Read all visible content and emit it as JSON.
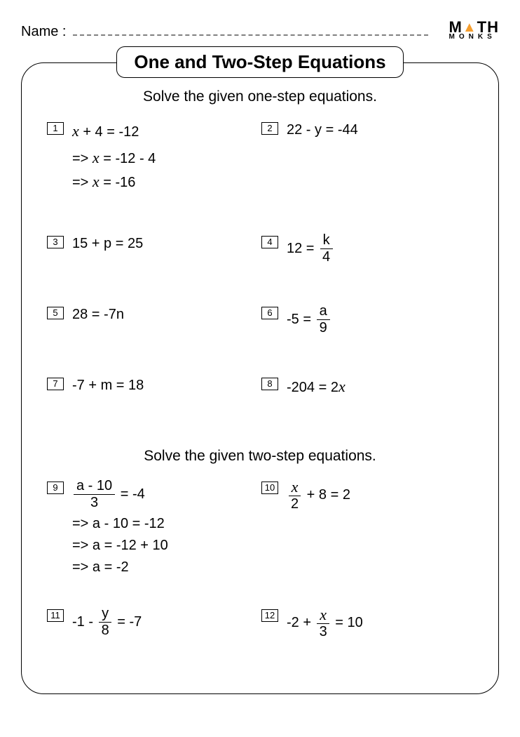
{
  "name_label": "Name :",
  "logo": {
    "l1a": "M",
    "l1b": "TH",
    "l2": "MONKS"
  },
  "title": "One and Two-Step Equations",
  "section1_head": "Solve the given one-step equations.",
  "section2_head": "Solve the given two-step equations.",
  "q1": {
    "n": "1",
    "eq": " + 4 = -12",
    "w1": " = -12 - 4",
    "w2": " = -16"
  },
  "q2": {
    "n": "2",
    "eq": "22 - y = -44"
  },
  "q3": {
    "n": "3",
    "eq": "15 + p = 25"
  },
  "q4": {
    "n": "4",
    "pre": "12 = ",
    "fnum": "k",
    "fden": "4"
  },
  "q5": {
    "n": "5",
    "eq": "28 = -7n"
  },
  "q6": {
    "n": "6",
    "pre": "-5 = ",
    "fnum": "a",
    "fden": "9"
  },
  "q7": {
    "n": "7",
    "eq": "-7 + m = 18"
  },
  "q8": {
    "n": "8",
    "pre": "-204 = 2"
  },
  "q9": {
    "n": "9",
    "fnum": "a - 10",
    "fden": "3",
    "post": " = -4",
    "w1": "a - 10 = -12",
    "w2": "a = -12 + 10",
    "w3": "a = -2"
  },
  "q10": {
    "n": "10",
    "fden": "2",
    "post": " + 8 = 2"
  },
  "q11": {
    "n": "11",
    "pre": "-1 - ",
    "fnum": "y",
    "fden": "8",
    "post": " = -7"
  },
  "q12": {
    "n": "12",
    "pre": "-2 + ",
    "fden": "3",
    "post": " = 10"
  },
  "arrow": "=>  "
}
